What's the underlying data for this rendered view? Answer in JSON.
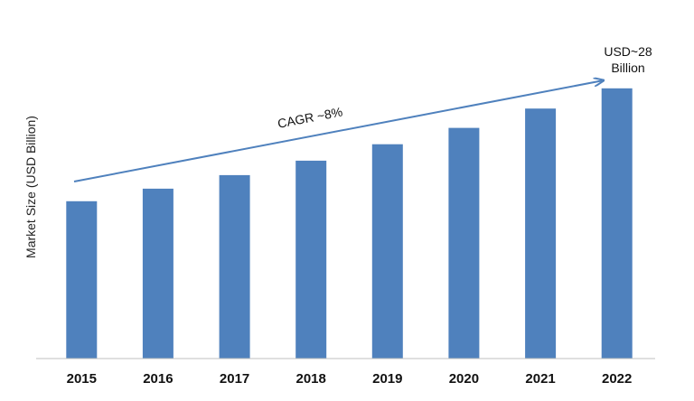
{
  "chart_data": {
    "type": "bar",
    "categories": [
      "2015",
      "2016",
      "2017",
      "2018",
      "2019",
      "2020",
      "2021",
      "2022"
    ],
    "values": [
      16.3,
      17.6,
      19.0,
      20.5,
      22.2,
      23.9,
      25.9,
      28.0
    ],
    "title": "",
    "xlabel": "",
    "ylabel": "Market Size (USD Billion)",
    "ylim": [
      0,
      32
    ],
    "grid": false,
    "legend": "none",
    "bar_color": "#4f81bd",
    "trend_arrow_color": "#4f81bd",
    "annotations": {
      "cagr": "CAGR ~8%",
      "last_value_line1": "USD~28",
      "last_value_line2": "Billion"
    }
  }
}
